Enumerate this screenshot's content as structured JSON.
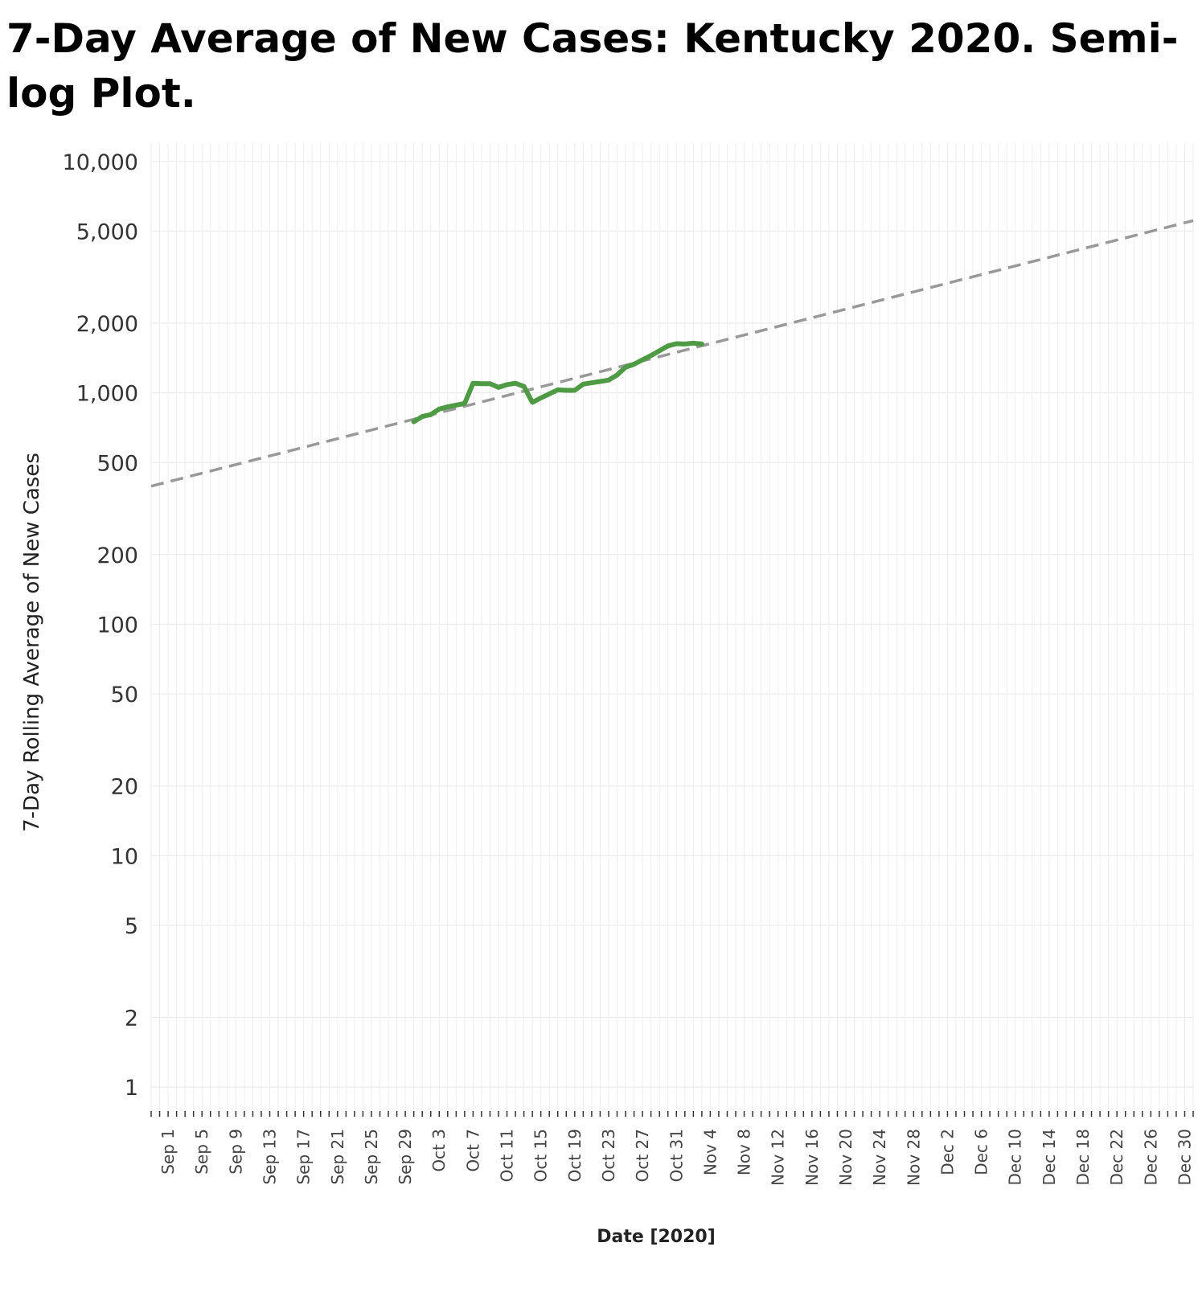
{
  "chart_data": {
    "type": "line",
    "title": "7-Day Average of New Cases:  Kentucky 2020.  Semi-log Plot.",
    "xlabel": "Date [2020]",
    "ylabel": "7-Day Rolling  Average of New Cases",
    "y_scale": "log",
    "ylim": [
      0.8,
      12000
    ],
    "xlim": [
      "2020-08-30",
      "2020-12-31"
    ],
    "y_ticks": [
      1,
      2,
      5,
      10,
      20,
      50,
      100,
      200,
      500,
      1000,
      2000,
      5000,
      10000
    ],
    "y_tick_labels": [
      "1",
      "2",
      "5",
      "10",
      "20",
      "50",
      "100",
      "200",
      "500",
      "1,000",
      "2,000",
      "5,000",
      "10,000"
    ],
    "x_ticks": [
      "2020-09-01",
      "2020-09-05",
      "2020-09-09",
      "2020-09-13",
      "2020-09-17",
      "2020-09-21",
      "2020-09-25",
      "2020-09-29",
      "2020-10-03",
      "2020-10-07",
      "2020-10-11",
      "2020-10-15",
      "2020-10-19",
      "2020-10-23",
      "2020-10-27",
      "2020-10-31",
      "2020-11-04",
      "2020-11-08",
      "2020-11-12",
      "2020-11-16",
      "2020-11-20",
      "2020-11-24",
      "2020-11-28",
      "2020-12-02",
      "2020-12-06",
      "2020-12-10",
      "2020-12-14",
      "2020-12-18",
      "2020-12-22",
      "2020-12-26",
      "2020-12-30"
    ],
    "x_tick_labels": [
      "Sep 1",
      "Sep 5",
      "Sep 9",
      "Sep 13",
      "Sep 17",
      "Sep 21",
      "Sep 25",
      "Sep 29",
      "Oct 3",
      "Oct 7",
      "Oct 11",
      "Oct 15",
      "Oct 19",
      "Oct 23",
      "Oct 27",
      "Oct 31",
      "Nov 4",
      "Nov 8",
      "Nov 12",
      "Nov 16",
      "Nov 20",
      "Nov 24",
      "Nov 28",
      "Dec 2",
      "Dec 6",
      "Dec 10",
      "Dec 14",
      "Dec 18",
      "Dec 22",
      "Dec 26",
      "Dec 30"
    ],
    "grid": true,
    "series": [
      {
        "color": "#4f9a44",
        "style": "solid",
        "x": [
          "2020-09-30",
          "2020-10-01",
          "2020-10-02",
          "2020-10-03",
          "2020-10-04",
          "2020-10-05",
          "2020-10-06",
          "2020-10-07",
          "2020-10-08",
          "2020-10-09",
          "2020-10-10",
          "2020-10-11",
          "2020-10-12",
          "2020-10-13",
          "2020-10-14",
          "2020-10-15",
          "2020-10-16",
          "2020-10-17",
          "2020-10-18",
          "2020-10-19",
          "2020-10-20",
          "2020-10-21",
          "2020-10-22",
          "2020-10-23",
          "2020-10-24",
          "2020-10-25",
          "2020-10-26",
          "2020-10-27",
          "2020-10-28",
          "2020-10-29",
          "2020-10-30",
          "2020-10-31",
          "2020-11-01",
          "2020-11-02",
          "2020-11-03"
        ],
        "values": [
          750,
          790,
          805,
          850,
          870,
          885,
          900,
          1100,
          1095,
          1095,
          1055,
          1085,
          1100,
          1065,
          910,
          950,
          990,
          1030,
          1025,
          1025,
          1090,
          1105,
          1120,
          1135,
          1195,
          1290,
          1330,
          1390,
          1450,
          1520,
          1595,
          1630,
          1625,
          1640,
          1625
        ]
      },
      {
        "color": "#999999",
        "style": "dashed",
        "x": [
          "2020-08-30",
          "2020-12-31"
        ],
        "values": [
          395,
          5550
        ]
      }
    ]
  }
}
